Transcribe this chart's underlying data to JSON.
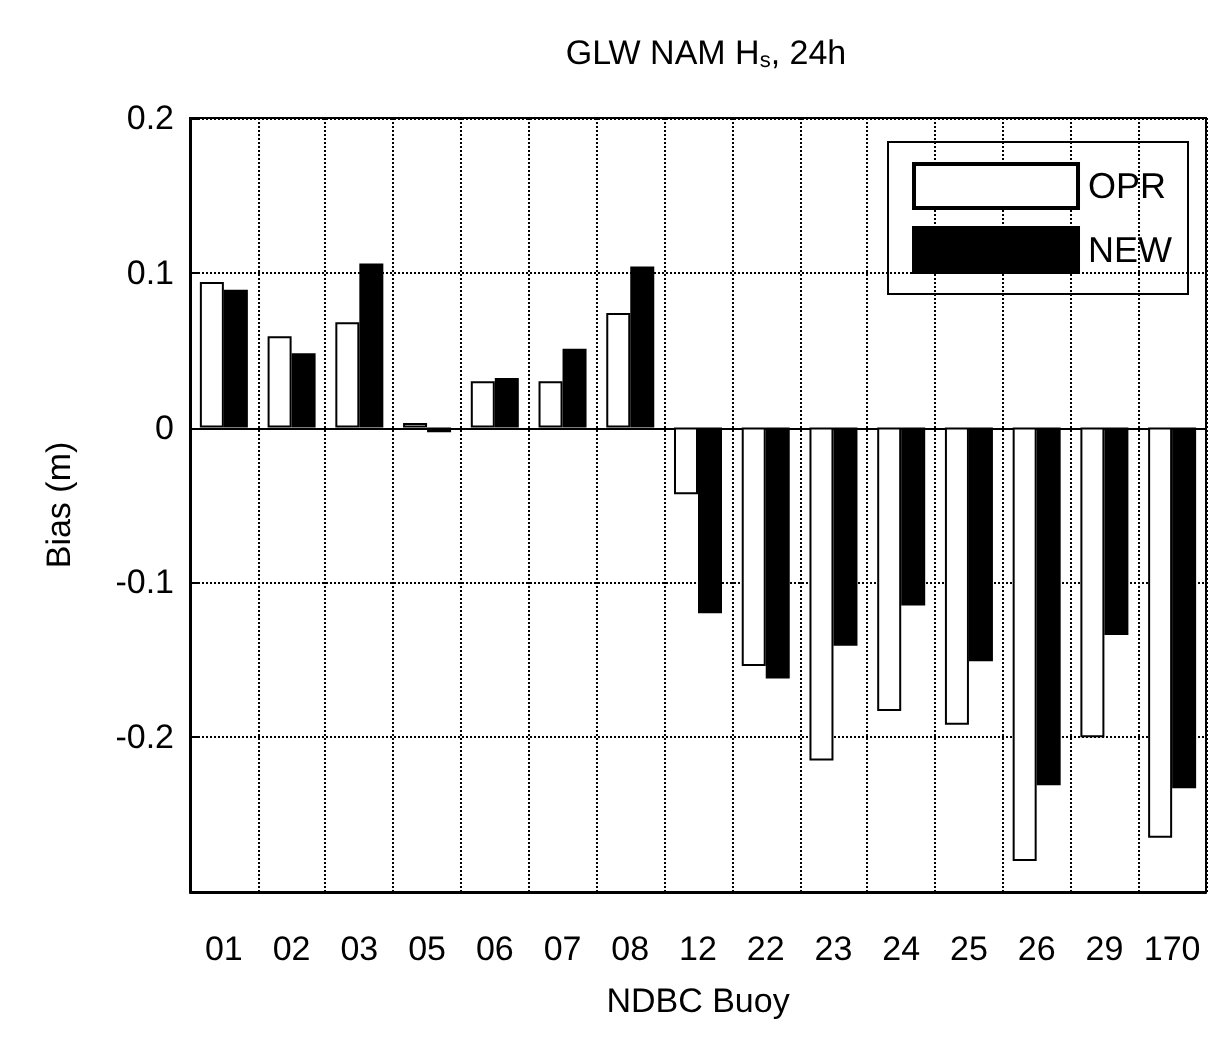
{
  "chart_data": {
    "type": "bar",
    "title": "GLW NAM H$_{s}$, 24h",
    "xlabel": "NDBC Buoy",
    "ylabel": "Bias (m)",
    "categories": [
      "01",
      "02",
      "03",
      "05",
      "06",
      "07",
      "08",
      "12",
      "22",
      "23",
      "24",
      "25",
      "26",
      "29",
      "170"
    ],
    "series": [
      {
        "name": "OPR",
        "color": "#ffffff",
        "values": [
          0.094,
          0.059,
          0.068,
          0.003,
          0.03,
          0.03,
          0.074,
          -0.043,
          -0.154,
          -0.215,
          -0.183,
          -0.192,
          -0.28,
          -0.2,
          -0.265
        ]
      },
      {
        "name": "NEW",
        "color": "#000000",
        "values": [
          0.089,
          0.048,
          0.106,
          -0.003,
          0.032,
          0.051,
          0.104,
          -0.12,
          -0.162,
          -0.141,
          -0.115,
          -0.151,
          -0.231,
          -0.134,
          -0.233
        ]
      }
    ],
    "ylim": [
      -0.3,
      0.2
    ],
    "yticks": [
      {
        "value": -0.3,
        "label": null
      },
      -0.2,
      -0.1,
      0,
      0.1,
      0.2
    ],
    "grid": true,
    "legend": "top right"
  }
}
